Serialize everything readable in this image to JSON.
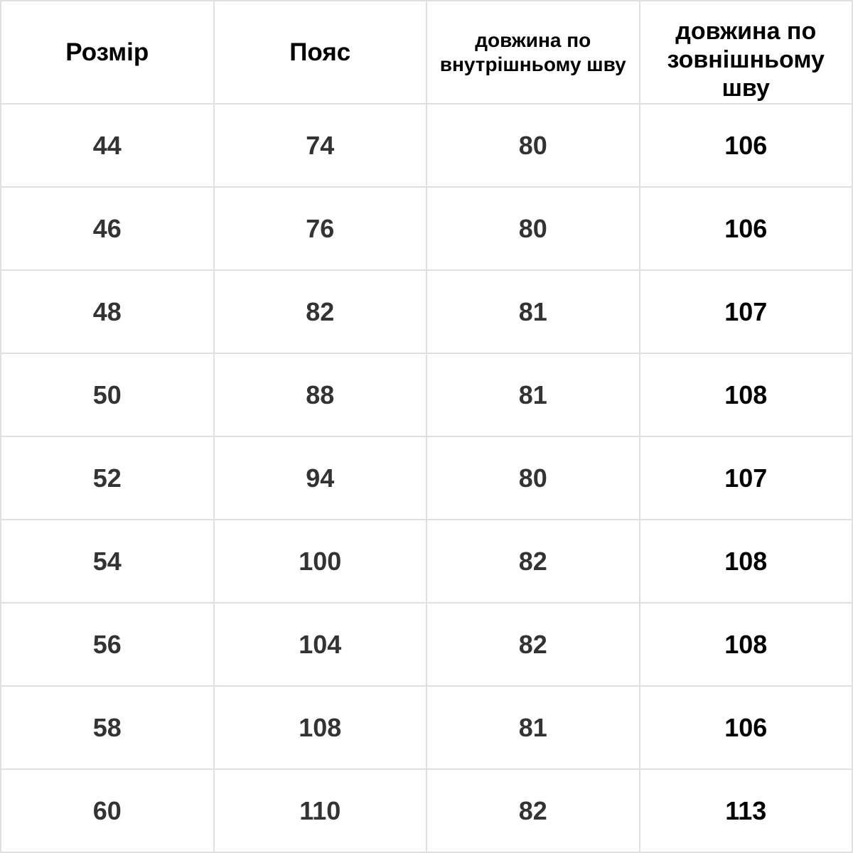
{
  "headers": [
    "Розмір",
    "Пояс",
    "довжина по внутрішньому шву",
    "довжина по зовнішньому шву"
  ],
  "rows": [
    [
      "44",
      "74",
      "80",
      "106"
    ],
    [
      "46",
      "76",
      "80",
      "106"
    ],
    [
      "48",
      "82",
      "81",
      "107"
    ],
    [
      "50",
      "88",
      "81",
      "108"
    ],
    [
      "52",
      "94",
      "80",
      "107"
    ],
    [
      "54",
      "100",
      "82",
      "108"
    ],
    [
      "56",
      "104",
      "82",
      "108"
    ],
    [
      "58",
      "108",
      "81",
      "106"
    ],
    [
      "60",
      "110",
      "82",
      "113"
    ]
  ],
  "colors": {
    "border": "#e0e0e0",
    "text": "#333333",
    "last_column_text": "#000000"
  }
}
